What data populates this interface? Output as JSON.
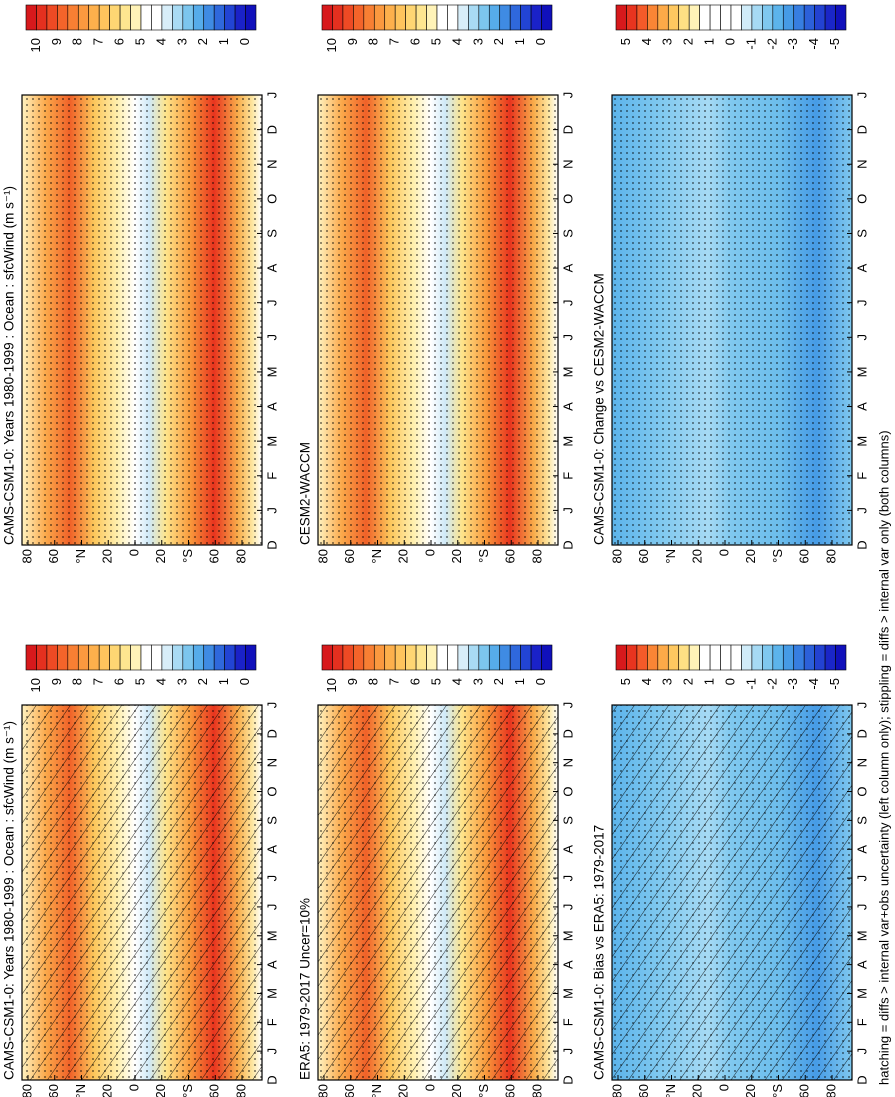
{
  "panels": [
    {
      "title": "CAMS-CSM1-0: Years 1980-1999 : Ocean : sfcWind (m s⁻¹)",
      "colorbar": "wind",
      "hatching": false
    },
    {
      "title": "CESM2-WACCM",
      "colorbar": "wind",
      "hatching": false
    },
    {
      "title": "CAMS-CSM1-0: Change vs CESM2-WACCM",
      "colorbar": "diff",
      "hatching": false
    },
    {
      "title": "CAMS-CSM1-0: Years 1980-1999 : Ocean : sfcWind (m s⁻¹)",
      "colorbar": "wind",
      "hatching": true
    },
    {
      "title": "ERA5: 1979-2017 Uncer=10%",
      "colorbar": "wind",
      "hatching": true
    },
    {
      "title": "CAMS-CSM1-0: Bias vs ERA5: 1979-2017",
      "colorbar": "diff",
      "hatching": true
    }
  ],
  "lat_labels": [
    "80",
    "60",
    "°N",
    "20",
    "0",
    "20",
    "°S",
    "60",
    "80"
  ],
  "month_labels": [
    "D",
    "J",
    "F",
    "M",
    "A",
    "M",
    "J",
    "J",
    "A",
    "S",
    "O",
    "N",
    "D",
    "J"
  ],
  "colorbars": {
    "wind": {
      "labels": [
        10,
        9,
        8,
        7,
        6,
        5,
        4,
        3,
        2,
        1,
        0
      ],
      "colors": [
        "#d7191c",
        "#e4301f",
        "#ee4a24",
        "#f4642a",
        "#f87f33",
        "#fb993f",
        "#fdb04c",
        "#fec45d",
        "#fed673",
        "#fee690",
        "#fff3b8",
        "#ffffff",
        "#ffffff",
        "#d8eef9",
        "#a9dbf4",
        "#7cc6ee",
        "#56acea",
        "#3f8be3",
        "#2f68dc",
        "#2244d4",
        "#1a22c8",
        "#1010bb"
      ]
    },
    "diff": {
      "labels": [
        5,
        4,
        3,
        2,
        1,
        0,
        -1,
        -2,
        -3,
        -4,
        -5
      ],
      "colors": [
        "#d7191c",
        "#e8341f",
        "#f45a29",
        "#fa8535",
        "#fdaa48",
        "#fec860",
        "#fee084",
        "#fff3b8",
        "#ffffff",
        "#ffffff",
        "#ffffff",
        "#ffffff",
        "#d0ecf9",
        "#a6daf4",
        "#7fc8ef",
        "#5cb4eb",
        "#469be6",
        "#377ee1",
        "#2c60da",
        "#2342d2",
        "#1a26c8",
        "#1010bb"
      ]
    }
  },
  "footnote": "hatching = diffs > internal var+obs uncertainty (left column only); stippling = diffs > internal var only (both columns)"
}
